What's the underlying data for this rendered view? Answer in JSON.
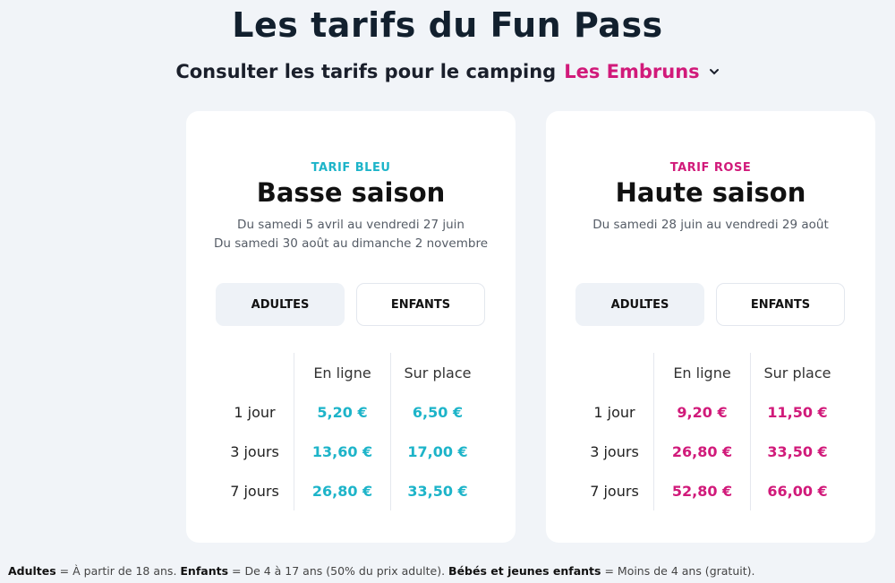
{
  "page": {
    "title": "Les tarifs du Fun Pass",
    "subtitle_prefix": "Consulter les tarifs pour le camping",
    "camping": "Les Embruns"
  },
  "colors": {
    "blue": "#1db4c9",
    "pink": "#d11a7a"
  },
  "cards": [
    {
      "tier": "TARIF BLEU",
      "season": "Basse saison",
      "dates": [
        "Du samedi 5 avril au vendredi 27 juin",
        "Du samedi 30 août au dimanche 2 novembre"
      ],
      "tabs": [
        "ADULTES",
        "ENFANTS"
      ],
      "active_tab": "ADULTES",
      "columns": [
        "En ligne",
        "Sur place"
      ],
      "rows": [
        {
          "label": "1 jour",
          "online": "5,20 €",
          "onsite": "6,50 €"
        },
        {
          "label": "3 jours",
          "online": "13,60 €",
          "onsite": "17,00 €"
        },
        {
          "label": "7 jours",
          "online": "26,80 €",
          "onsite": "33,50 €"
        }
      ]
    },
    {
      "tier": "TARIF ROSE",
      "season": "Haute saison",
      "dates": [
        "Du samedi 28 juin au vendredi 29 août"
      ],
      "tabs": [
        "ADULTES",
        "ENFANTS"
      ],
      "active_tab": "ADULTES",
      "columns": [
        "En ligne",
        "Sur place"
      ],
      "rows": [
        {
          "label": "1 jour",
          "online": "9,20 €",
          "onsite": "11,50 €"
        },
        {
          "label": "3 jours",
          "online": "26,80 €",
          "onsite": "33,50 €"
        },
        {
          "label": "7 jours",
          "online": "52,80 €",
          "onsite": "66,00 €"
        }
      ]
    }
  ],
  "footnote": {
    "adults_label": "Adultes",
    "adults_text": " = À partir de 18 ans. ",
    "children_label": "Enfants",
    "children_text": " = De 4 à 17 ans (50% du prix adulte). ",
    "babies_label": "Bébés et jeunes enfants",
    "babies_text": " = Moins de 4 ans (gratuit)."
  }
}
